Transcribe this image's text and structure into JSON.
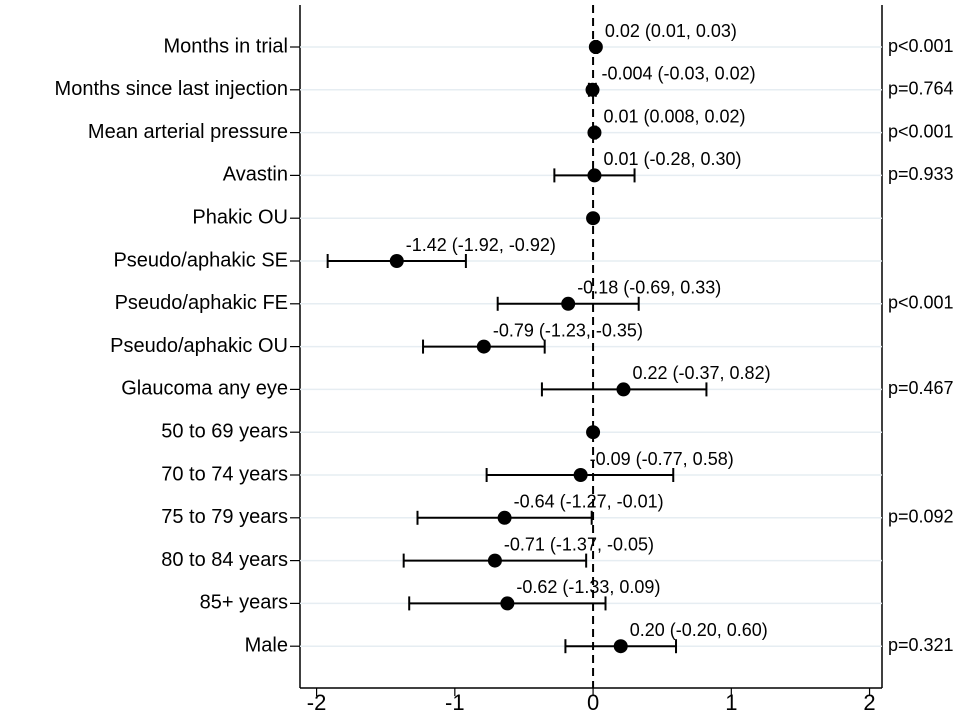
{
  "chart_data": {
    "type": "forest",
    "categories": [
      "Months in trial",
      "Months since last injection",
      "Mean arterial pressure",
      "Avastin",
      "Phakic OU",
      "Pseudo/aphakic SE",
      "Pseudo/aphakic FE",
      "Pseudo/aphakic OU",
      "Glaucoma any eye",
      "50 to 69 years",
      "70 to 74 years",
      "75 to 79 years",
      "80 to 84 years",
      "85+ years",
      "Male"
    ],
    "values": [
      0.02,
      -0.004,
      0.01,
      0.01,
      0,
      -1.42,
      -0.18,
      -0.79,
      0.22,
      0,
      -0.09,
      -0.64,
      -0.71,
      -0.62,
      0.2
    ],
    "lower": [
      0.01,
      -0.03,
      0.008,
      -0.28,
      null,
      -1.92,
      -0.69,
      -1.23,
      -0.37,
      null,
      -0.77,
      -1.27,
      -1.37,
      -1.33,
      -0.2
    ],
    "upper": [
      0.03,
      0.02,
      0.02,
      0.3,
      null,
      -0.92,
      0.33,
      -0.35,
      0.82,
      null,
      0.58,
      -0.01,
      -0.05,
      0.09,
      0.6
    ],
    "value_labels": [
      "0.02 (0.01, 0.03)",
      "-0.004 (-0.03, 0.02)",
      "0.01 (0.008, 0.02)",
      "0.01 (-0.28, 0.30)",
      null,
      "-1.42 (-1.92, -0.92)",
      "-0.18 (-0.69, 0.33)",
      "-0.79 (-1.23, -0.35)",
      "0.22 (-0.37, 0.82)",
      null,
      "-0.09 (-0.77, 0.58)",
      "-0.64 (-1.27, -0.01)",
      "-0.71 (-1.37, -0.05)",
      "-0.62 (-1.33, 0.09)",
      "0.20 (-0.20, 0.60)"
    ],
    "p_values": [
      "p<0.001",
      "p=0.764",
      "p<0.001",
      "p=0.933",
      null,
      null,
      "p<0.001",
      null,
      "p=0.467",
      null,
      null,
      "p=0.092",
      null,
      null,
      "p=0.321"
    ],
    "color": "#000000",
    "reference_line": 0,
    "xlim": [
      -2.12,
      2.09
    ],
    "xticks": [
      -2,
      -1,
      0,
      1,
      2
    ],
    "grid": true
  }
}
